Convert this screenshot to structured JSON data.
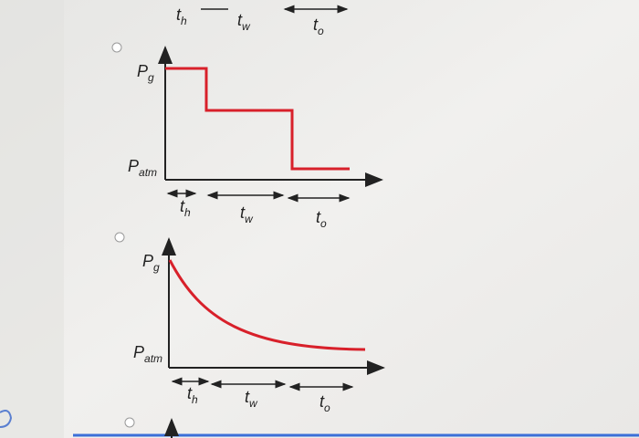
{
  "top_labels": [
    {
      "base": "t",
      "sub": "h"
    },
    {
      "base": "t",
      "sub": "w"
    },
    {
      "base": "t",
      "sub": "o"
    }
  ],
  "options": [
    {
      "y_top": {
        "base": "P",
        "sub": "g"
      },
      "y_bottom": {
        "base": "P",
        "sub": "atm"
      },
      "x_labels": [
        {
          "base": "t",
          "sub": "h"
        },
        {
          "base": "t",
          "sub": "w"
        },
        {
          "base": "t",
          "sub": "o"
        }
      ]
    },
    {
      "y_top": {
        "base": "P",
        "sub": "g"
      },
      "y_bottom": {
        "base": "P",
        "sub": "atm"
      },
      "x_labels": [
        {
          "base": "t",
          "sub": "h"
        },
        {
          "base": "t",
          "sub": "w"
        },
        {
          "base": "t",
          "sub": "o"
        }
      ]
    }
  ]
}
